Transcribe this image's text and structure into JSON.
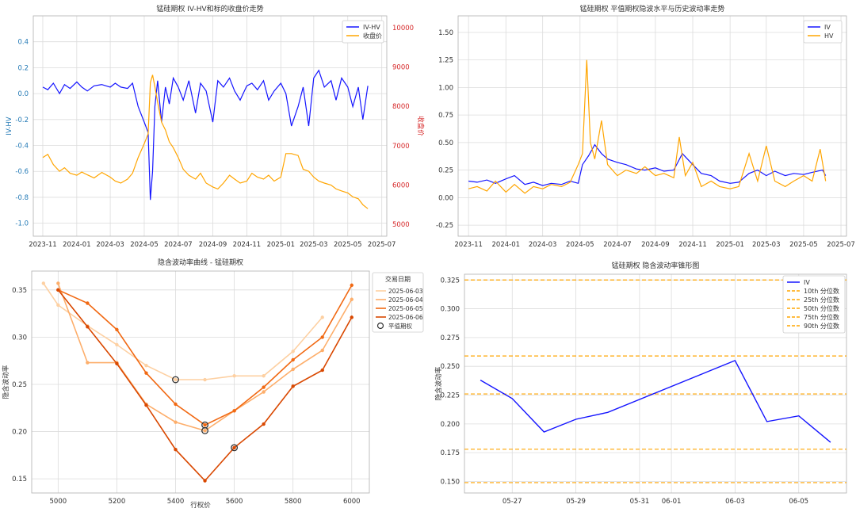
{
  "chart_data": [
    {
      "type": "line",
      "title": "锰硅期权 IV-HV和标的收盘价走势",
      "ylabel_left": "IV-HV",
      "ylabel_right": "收盘价",
      "ylim_left": [
        -1.1,
        0.6
      ],
      "yticks_left": [
        -1.0,
        -0.8,
        -0.6,
        -0.4,
        -0.2,
        0.0,
        0.2,
        0.4
      ],
      "ylim_right": [
        4700,
        10300
      ],
      "yticks_right": [
        5000,
        6000,
        7000,
        8000,
        9000,
        10000
      ],
      "xlim": [
        "2023-10-15",
        "2025-07-10"
      ],
      "xticks": [
        "2023-11",
        "2024-01",
        "2024-03",
        "2024-05",
        "2024-07",
        "2024-09",
        "2024-11",
        "2025-01",
        "2025-03",
        "2025-05",
        "2025-07"
      ],
      "grid": true,
      "legend_position": "top-right",
      "axis_colors": {
        "left": "#1f77b4",
        "right": "#d62728"
      },
      "series": [
        {
          "name": "IV-HV",
          "axis": "left",
          "color": "#1515ff",
          "x": [
            "2023-11-01",
            "2023-11-10",
            "2023-11-20",
            "2023-12-01",
            "2023-12-10",
            "2023-12-20",
            "2024-01-01",
            "2024-01-10",
            "2024-01-20",
            "2024-02-01",
            "2024-02-15",
            "2024-03-01",
            "2024-03-10",
            "2024-03-20",
            "2024-04-01",
            "2024-04-10",
            "2024-04-20",
            "2024-05-01",
            "2024-05-08",
            "2024-05-12",
            "2024-05-16",
            "2024-05-20",
            "2024-05-25",
            "2024-06-01",
            "2024-06-08",
            "2024-06-15",
            "2024-06-22",
            "2024-07-01",
            "2024-07-10",
            "2024-07-20",
            "2024-08-01",
            "2024-08-10",
            "2024-08-20",
            "2024-09-01",
            "2024-09-10",
            "2024-09-20",
            "2024-10-01",
            "2024-10-10",
            "2024-10-20",
            "2024-11-01",
            "2024-11-10",
            "2024-11-20",
            "2024-12-01",
            "2024-12-10",
            "2024-12-20",
            "2025-01-01",
            "2025-01-10",
            "2025-01-20",
            "2025-02-01",
            "2025-02-10",
            "2025-02-20",
            "2025-03-01",
            "2025-03-10",
            "2025-03-20",
            "2025-04-01",
            "2025-04-10",
            "2025-04-20",
            "2025-05-01",
            "2025-05-10",
            "2025-05-20",
            "2025-05-28",
            "2025-06-06"
          ],
          "y": [
            0.05,
            0.03,
            0.08,
            0.0,
            0.07,
            0.04,
            0.09,
            0.05,
            0.02,
            0.06,
            0.07,
            0.05,
            0.08,
            0.05,
            0.04,
            0.08,
            -0.1,
            -0.22,
            -0.3,
            -0.82,
            -0.6,
            -0.1,
            0.1,
            -0.22,
            0.05,
            -0.08,
            0.12,
            0.05,
            -0.05,
            0.1,
            -0.15,
            0.08,
            0.02,
            -0.22,
            0.1,
            0.05,
            0.12,
            0.02,
            -0.05,
            0.06,
            0.08,
            0.03,
            0.1,
            -0.05,
            0.02,
            0.08,
            0.0,
            -0.25,
            -0.1,
            0.05,
            -0.25,
            0.12,
            0.18,
            0.05,
            0.1,
            -0.05,
            0.12,
            0.05,
            -0.1,
            0.05,
            -0.2,
            0.06
          ]
        },
        {
          "name": "收盘价",
          "axis": "right",
          "color": "#ffa500",
          "x": [
            "2023-11-01",
            "2023-11-10",
            "2023-11-20",
            "2023-12-01",
            "2023-12-10",
            "2023-12-20",
            "2024-01-01",
            "2024-01-10",
            "2024-01-20",
            "2024-02-01",
            "2024-02-15",
            "2024-03-01",
            "2024-03-10",
            "2024-03-20",
            "2024-04-01",
            "2024-04-10",
            "2024-04-20",
            "2024-05-01",
            "2024-05-08",
            "2024-05-12",
            "2024-05-16",
            "2024-05-20",
            "2024-05-25",
            "2024-06-01",
            "2024-06-08",
            "2024-06-15",
            "2024-06-22",
            "2024-07-01",
            "2024-07-10",
            "2024-07-20",
            "2024-08-01",
            "2024-08-10",
            "2024-08-20",
            "2024-09-01",
            "2024-09-10",
            "2024-09-20",
            "2024-10-01",
            "2024-10-10",
            "2024-10-20",
            "2024-11-01",
            "2024-11-10",
            "2024-11-20",
            "2024-12-01",
            "2024-12-10",
            "2024-12-20",
            "2025-01-01",
            "2025-01-10",
            "2025-01-20",
            "2025-02-01",
            "2025-02-10",
            "2025-02-20",
            "2025-03-01",
            "2025-03-10",
            "2025-03-20",
            "2025-04-01",
            "2025-04-10",
            "2025-04-20",
            "2025-05-01",
            "2025-05-10",
            "2025-05-20",
            "2025-05-28",
            "2025-06-06"
          ],
          "y": [
            6700,
            6780,
            6520,
            6350,
            6440,
            6300,
            6250,
            6330,
            6260,
            6180,
            6320,
            6200,
            6100,
            6050,
            6150,
            6300,
            6700,
            7050,
            7300,
            8600,
            8800,
            8500,
            8100,
            7600,
            7400,
            7100,
            6950,
            6700,
            6400,
            6250,
            6150,
            6300,
            6050,
            5950,
            5900,
            6050,
            6250,
            6150,
            6050,
            6100,
            6300,
            6200,
            6150,
            6250,
            6100,
            6200,
            6800,
            6800,
            6750,
            6400,
            6350,
            6200,
            6100,
            6050,
            6000,
            5900,
            5850,
            5800,
            5700,
            5650,
            5500,
            5400
          ]
        }
      ]
    },
    {
      "type": "line",
      "title": "锰硅期权 平值期权隐波水平与历史波动率走势",
      "ylim": [
        -0.35,
        1.65
      ],
      "yticks": [
        -0.25,
        0.0,
        0.25,
        0.5,
        0.75,
        1.0,
        1.25,
        1.5
      ],
      "xlim": [
        "2023-10-15",
        "2025-07-10"
      ],
      "xticks": [
        "2023-11",
        "2024-01",
        "2024-03",
        "2024-05",
        "2024-07",
        "2024-09",
        "2024-11",
        "2025-01",
        "2025-03",
        "2025-05",
        "2025-07"
      ],
      "grid": true,
      "legend_position": "top-right",
      "series": [
        {
          "name": "IV",
          "color": "#1515ff",
          "x": [
            "2023-11-01",
            "2023-11-15",
            "2023-12-01",
            "2023-12-15",
            "2024-01-01",
            "2024-01-15",
            "2024-02-01",
            "2024-02-15",
            "2024-03-01",
            "2024-03-15",
            "2024-04-01",
            "2024-04-15",
            "2024-04-28",
            "2024-05-05",
            "2024-05-15",
            "2024-05-25",
            "2024-06-05",
            "2024-06-15",
            "2024-07-01",
            "2024-07-15",
            "2024-08-01",
            "2024-08-15",
            "2024-09-01",
            "2024-09-15",
            "2024-10-01",
            "2024-10-15",
            "2024-11-01",
            "2024-11-15",
            "2024-12-01",
            "2024-12-15",
            "2025-01-01",
            "2025-01-15",
            "2025-02-01",
            "2025-02-15",
            "2025-03-01",
            "2025-03-15",
            "2025-04-01",
            "2025-04-15",
            "2025-05-01",
            "2025-05-15",
            "2025-06-01",
            "2025-06-06"
          ],
          "y": [
            0.15,
            0.14,
            0.16,
            0.13,
            0.17,
            0.2,
            0.12,
            0.14,
            0.11,
            0.13,
            0.12,
            0.15,
            0.13,
            0.3,
            0.38,
            0.48,
            0.4,
            0.35,
            0.32,
            0.3,
            0.26,
            0.25,
            0.27,
            0.24,
            0.25,
            0.4,
            0.3,
            0.22,
            0.2,
            0.15,
            0.13,
            0.14,
            0.22,
            0.25,
            0.2,
            0.24,
            0.2,
            0.22,
            0.21,
            0.23,
            0.25,
            0.2
          ]
        },
        {
          "name": "HV",
          "color": "#ffa500",
          "x": [
            "2023-11-01",
            "2023-11-15",
            "2023-12-01",
            "2023-12-15",
            "2024-01-01",
            "2024-01-15",
            "2024-02-01",
            "2024-02-15",
            "2024-03-01",
            "2024-03-15",
            "2024-04-01",
            "2024-04-15",
            "2024-04-28",
            "2024-05-05",
            "2024-05-12",
            "2024-05-18",
            "2024-05-25",
            "2024-06-05",
            "2024-06-15",
            "2024-07-01",
            "2024-07-15",
            "2024-08-01",
            "2024-08-15",
            "2024-09-01",
            "2024-09-15",
            "2024-10-01",
            "2024-10-10",
            "2024-10-20",
            "2024-11-01",
            "2024-11-15",
            "2024-12-01",
            "2024-12-15",
            "2025-01-01",
            "2025-01-15",
            "2025-02-01",
            "2025-02-15",
            "2025-03-01",
            "2025-03-15",
            "2025-04-01",
            "2025-04-15",
            "2025-05-01",
            "2025-05-15",
            "2025-05-28",
            "2025-06-06"
          ],
          "y": [
            0.08,
            0.1,
            0.06,
            0.15,
            0.05,
            0.12,
            0.04,
            0.1,
            0.08,
            0.12,
            0.1,
            0.14,
            0.3,
            0.4,
            1.25,
            0.5,
            0.35,
            0.7,
            0.3,
            0.2,
            0.25,
            0.22,
            0.28,
            0.2,
            0.22,
            0.18,
            0.55,
            0.2,
            0.32,
            0.1,
            0.15,
            0.1,
            0.08,
            0.1,
            0.4,
            0.15,
            0.47,
            0.15,
            0.1,
            0.15,
            0.2,
            0.15,
            0.44,
            0.15
          ]
        }
      ]
    },
    {
      "type": "line",
      "title": "隐含波动率曲线 - 锰硅期权",
      "xlabel": "行权价",
      "ylabel": "隐含波动率",
      "xlim": [
        4910,
        6060
      ],
      "xticks": [
        5000,
        5200,
        5400,
        5600,
        5800,
        6000
      ],
      "ylim": [
        0.135,
        0.37
      ],
      "yticks": [
        0.15,
        0.2,
        0.25,
        0.3,
        0.35
      ],
      "grid": true,
      "legend_title": "交易日期",
      "legend_position": "top-right",
      "atm_legend_label": "平值期权",
      "series": [
        {
          "name": "2025-06-03",
          "color": "#fdd0a2",
          "x": [
            4950,
            5000,
            5100,
            5200,
            5300,
            5400,
            5500,
            5600,
            5700,
            5800,
            5900
          ],
          "y": [
            0.357,
            0.334,
            0.312,
            0.292,
            0.27,
            0.255,
            0.255,
            0.259,
            0.259,
            0.285,
            0.321
          ]
        },
        {
          "name": "2025-06-04",
          "color": "#fdae6b",
          "x": [
            5000,
            5100,
            5200,
            5300,
            5400,
            5500,
            5600,
            5700,
            5800,
            5900,
            6000
          ],
          "y": [
            0.357,
            0.273,
            0.273,
            0.229,
            0.21,
            0.201,
            0.222,
            0.242,
            0.266,
            0.286,
            0.34
          ]
        },
        {
          "name": "2025-06-05",
          "color": "#f16913",
          "x": [
            5000,
            5100,
            5200,
            5300,
            5400,
            5500,
            5600,
            5700,
            5800,
            5900,
            6000
          ],
          "y": [
            0.35,
            0.336,
            0.308,
            0.262,
            0.229,
            0.207,
            0.222,
            0.247,
            0.276,
            0.3,
            0.355
          ]
        },
        {
          "name": "2025-06-06",
          "color": "#d94801",
          "x": [
            5000,
            5100,
            5200,
            5300,
            5400,
            5500,
            5600,
            5700,
            5800,
            5900,
            6000
          ],
          "y": [
            0.35,
            0.311,
            0.272,
            0.228,
            0.181,
            0.148,
            0.183,
            0.208,
            0.248,
            0.265,
            0.321
          ]
        }
      ],
      "atm_points": [
        {
          "x": 5400,
          "y": 0.255
        },
        {
          "x": 5500,
          "y": 0.201
        },
        {
          "x": 5500,
          "y": 0.207
        },
        {
          "x": 5600,
          "y": 0.183
        }
      ]
    },
    {
      "type": "line",
      "title": "锰硅期权 隐含波动率锥形图",
      "ylabel": "隐含波动率",
      "ylim": [
        0.14,
        0.33
      ],
      "yticks": [
        0.15,
        0.175,
        0.2,
        0.225,
        0.25,
        0.275,
        0.3,
        0.325
      ],
      "xlim": [
        "2025-05-25T12:00",
        "2025-06-06T12:00"
      ],
      "xticks": [
        "05-27",
        "05-29",
        "05-31",
        "06-01",
        "06-03",
        "06-05"
      ],
      "xtick_dates": [
        "2025-05-27",
        "2025-05-29",
        "2025-05-31",
        "2025-06-01",
        "2025-06-03",
        "2025-06-05"
      ],
      "grid": true,
      "legend_position": "top-right",
      "series": [
        {
          "name": "IV",
          "color": "#1515ff",
          "x": [
            "2025-05-26",
            "2025-05-27",
            "2025-05-28",
            "2025-05-29",
            "2025-05-30",
            "2025-06-03",
            "2025-06-04",
            "2025-06-05",
            "2025-06-06"
          ],
          "y": [
            0.238,
            0.222,
            0.193,
            0.204,
            0.21,
            0.255,
            0.202,
            0.207,
            0.184
          ]
        }
      ],
      "percentiles": [
        {
          "name": "10th 分位数",
          "value": 0.149
        },
        {
          "name": "25th 分位数",
          "value": 0.178
        },
        {
          "name": "50th 分位数",
          "value": 0.226
        },
        {
          "name": "75th 分位数",
          "value": 0.259
        },
        {
          "name": "90th 分位数",
          "value": 0.325
        }
      ],
      "percentile_color": "#ffa500"
    }
  ]
}
